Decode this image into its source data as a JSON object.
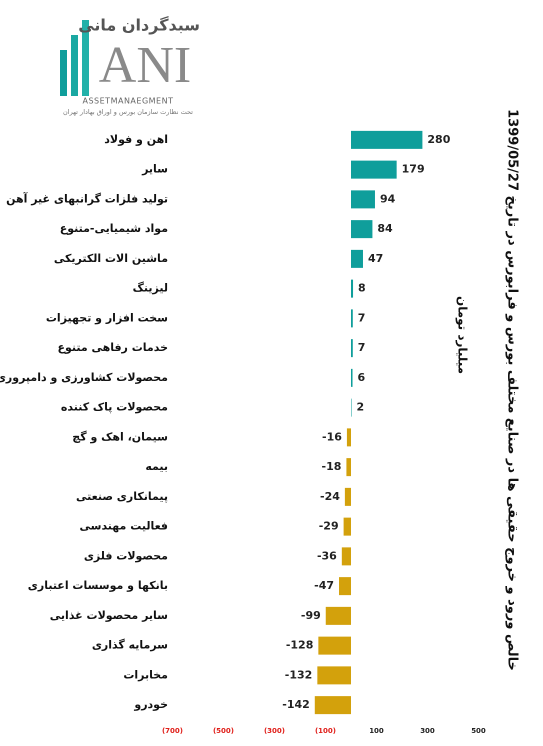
{
  "logo": {
    "brand": "سبدگردان مانی",
    "letters": "ANI",
    "english": "ASSETMANAEGMENT",
    "note": "تحت نظارت سازمان بورس و اوراق بهادار تهران"
  },
  "chart_data": {
    "type": "barh",
    "title": "خالص ورود و خروج حقیقی ها در صنایع مختلف بورس و فرابورس در تاریخ 1399/05/27",
    "subtitle": "میلیارد تومان",
    "categories": [
      "اهن و فولاد",
      "سایر",
      "تولید فلزات گرانبهای غیر آهن",
      "مواد شیمیایی-متنوع",
      "ماشین الات الکتریکی",
      "لیزینگ",
      "سخت افزار و تجهیزات",
      "خدمات رفاهی متنوع",
      "محصولات کشاورزی و دامپروری",
      "محصولات پاک کننده",
      "سیمان، اهک و گچ",
      "بیمه",
      "پیمانکاری صنعتی",
      "فعالیت مهندسی",
      "محصولات فلزی",
      "بانکها و موسسات اعتباری",
      "سایر محصولات غذایی",
      "سرمایه گذاری",
      "مخابرات",
      "خودرو"
    ],
    "values": [
      280,
      179,
      94,
      84,
      47,
      8,
      7,
      7,
      6,
      2,
      -16,
      -18,
      -24,
      -29,
      -36,
      -47,
      -99,
      -128,
      -132,
      -142
    ],
    "positive_color": "#0f9e9b",
    "negative_color": "#d3a10c",
    "negative_tick_color": "#e0201b",
    "xlim": [
      -750,
      550
    ],
    "xticks": [
      {
        "value": -700,
        "label": "(700)"
      },
      {
        "value": -500,
        "label": "(500)"
      },
      {
        "value": -300,
        "label": "(300)"
      },
      {
        "value": -100,
        "label": "(100)"
      },
      100,
      300,
      500
    ],
    "grid": false
  }
}
